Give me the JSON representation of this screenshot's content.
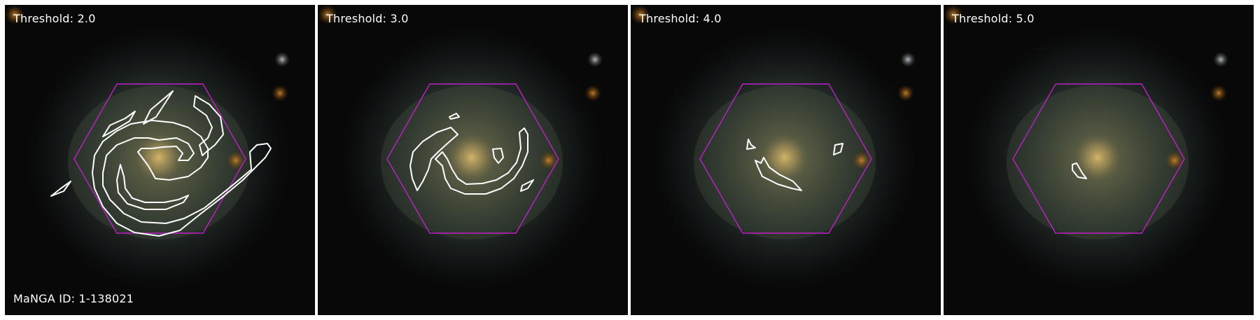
{
  "panels": [
    {
      "title": "Threshold: 2.0"
    },
    {
      "title": "Threshold: 3.0"
    },
    {
      "title": "Threshold: 4.0"
    },
    {
      "title": "Threshold: 5.0"
    }
  ],
  "manga_id": "MaNGA ID: 1-138021",
  "colors": {
    "hexagon": "#c020c8",
    "contour": "#ffffff",
    "background": "#080808",
    "divider": "#ffffff"
  }
}
